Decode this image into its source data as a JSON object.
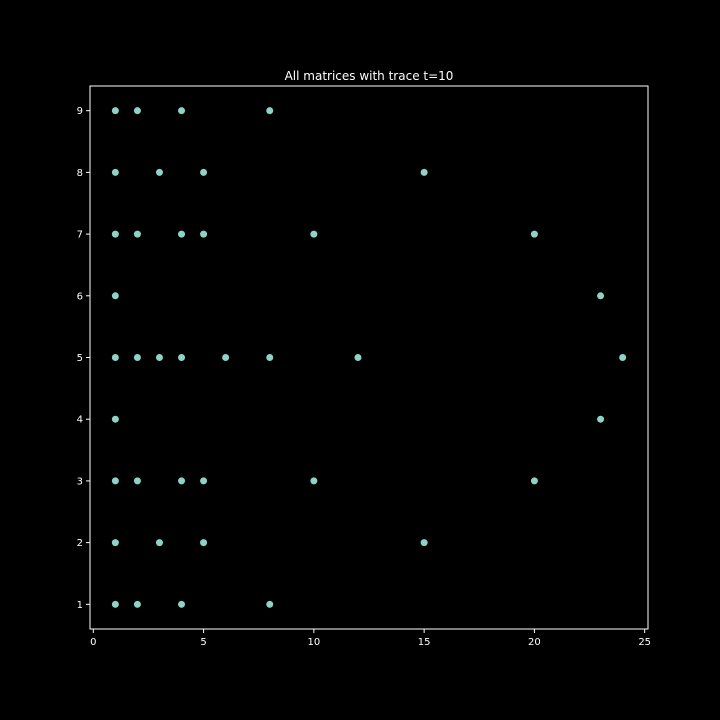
{
  "chart_data": {
    "type": "scatter",
    "title": "All matrices with trace t=10",
    "xlabel": "",
    "ylabel": "",
    "xlim": [
      -0.15,
      25.15
    ],
    "ylim": [
      0.6,
      9.4
    ],
    "xticks": [
      0,
      5,
      10,
      15,
      20,
      25
    ],
    "yticks": [
      1,
      2,
      3,
      4,
      5,
      6,
      7,
      8,
      9
    ],
    "grid": false,
    "legend": "none",
    "background_color": "#000000",
    "axis_color": "#ffffff",
    "marker_color": "#8dd3c7",
    "points": [
      {
        "x": 1,
        "y": 9
      },
      {
        "x": 2,
        "y": 9
      },
      {
        "x": 4,
        "y": 9
      },
      {
        "x": 8,
        "y": 9
      },
      {
        "x": 1,
        "y": 8
      },
      {
        "x": 3,
        "y": 8
      },
      {
        "x": 5,
        "y": 8
      },
      {
        "x": 15,
        "y": 8
      },
      {
        "x": 1,
        "y": 7
      },
      {
        "x": 2,
        "y": 7
      },
      {
        "x": 4,
        "y": 7
      },
      {
        "x": 5,
        "y": 7
      },
      {
        "x": 10,
        "y": 7
      },
      {
        "x": 20,
        "y": 7
      },
      {
        "x": 1,
        "y": 6
      },
      {
        "x": 23,
        "y": 6
      },
      {
        "x": 1,
        "y": 5
      },
      {
        "x": 2,
        "y": 5
      },
      {
        "x": 3,
        "y": 5
      },
      {
        "x": 4,
        "y": 5
      },
      {
        "x": 6,
        "y": 5
      },
      {
        "x": 8,
        "y": 5
      },
      {
        "x": 12,
        "y": 5
      },
      {
        "x": 24,
        "y": 5
      },
      {
        "x": 1,
        "y": 4
      },
      {
        "x": 23,
        "y": 4
      },
      {
        "x": 1,
        "y": 3
      },
      {
        "x": 2,
        "y": 3
      },
      {
        "x": 4,
        "y": 3
      },
      {
        "x": 5,
        "y": 3
      },
      {
        "x": 10,
        "y": 3
      },
      {
        "x": 20,
        "y": 3
      },
      {
        "x": 1,
        "y": 2
      },
      {
        "x": 3,
        "y": 2
      },
      {
        "x": 5,
        "y": 2
      },
      {
        "x": 15,
        "y": 2
      },
      {
        "x": 1,
        "y": 1
      },
      {
        "x": 2,
        "y": 1
      },
      {
        "x": 4,
        "y": 1
      },
      {
        "x": 8,
        "y": 1
      }
    ]
  }
}
